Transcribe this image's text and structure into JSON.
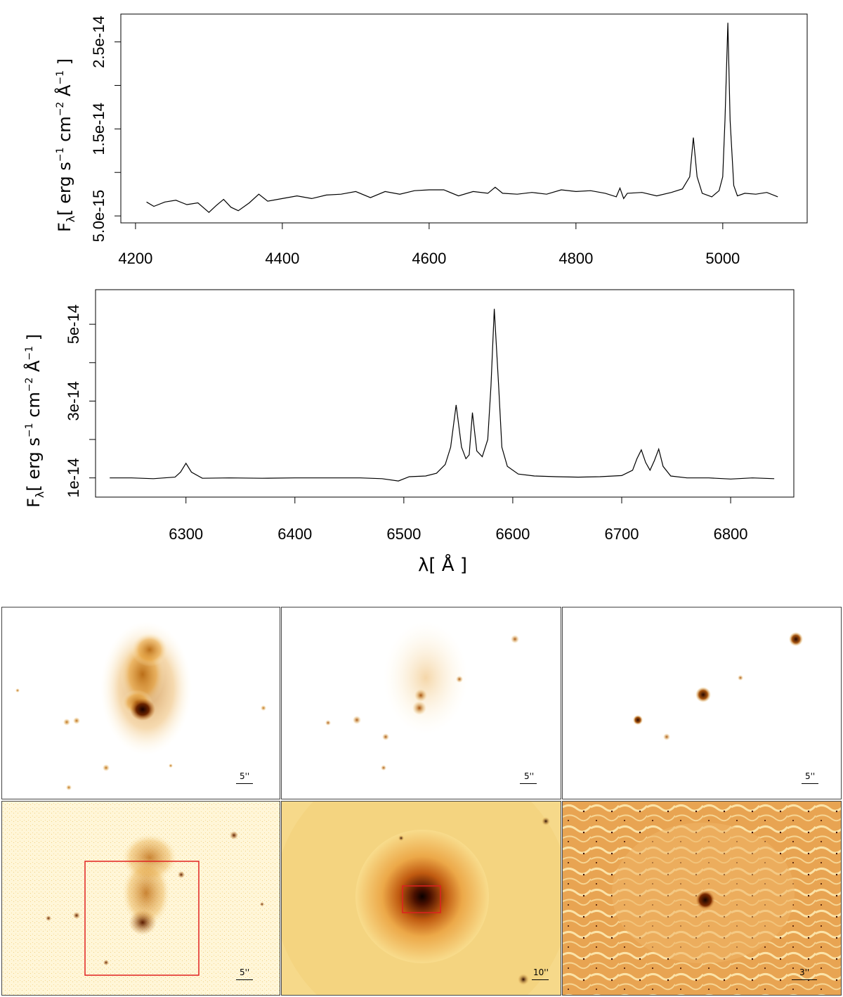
{
  "chart_data": [
    {
      "type": "line",
      "ylabel": "F_λ [ erg s^-1 cm^-2 Å^-1 ]",
      "ylabel_parts": {
        "f": "F",
        "lambda": "λ",
        "open": "[ erg s",
        "m1": "−1",
        "cm": " cm",
        "m2": "−2",
        "A": " Å",
        "m1b": "−1",
        "close": " ]"
      },
      "xlabel": "",
      "xlim": [
        4180,
        5115
      ],
      "ylim": [
        4.2e-15,
        2.82e-14
      ],
      "xticks": [
        4200,
        4400,
        4600,
        4800,
        5000
      ],
      "xtick_labels": [
        "4200",
        "4400",
        "4600",
        "4800",
        "5000"
      ],
      "yticks": [
        5e-15,
        1e-14,
        1.5e-14,
        2e-14,
        2.5e-14
      ],
      "ytick_labels": [
        "5.0e-15",
        "",
        "1.5e-14",
        "",
        "2.5e-14"
      ],
      "series": [
        {
          "x": [
            4215,
            4225,
            4240,
            4255,
            4270,
            4285,
            4300,
            4310,
            4320,
            4330,
            4340,
            4355,
            4368,
            4380,
            4400,
            4420,
            4440,
            4460,
            4480,
            4500,
            4520,
            4540,
            4560,
            4580,
            4600,
            4620,
            4640,
            4660,
            4680,
            4690,
            4700,
            4720,
            4740,
            4760,
            4780,
            4800,
            4820,
            4840,
            4855,
            4860,
            4865,
            4870,
            4890,
            4910,
            4930,
            4945,
            4955,
            4960,
            4965,
            4972,
            4985,
            4995,
            5000,
            5003,
            5007,
            5010,
            5015,
            5020,
            5030,
            5045,
            5060,
            5075
          ],
          "y": [
            6.6e-15,
            6.1e-15,
            6.6e-15,
            6.8e-15,
            6.3e-15,
            6.5e-15,
            5.4e-15,
            6.2e-15,
            6.9e-15,
            6e-15,
            5.6e-15,
            6.5e-15,
            7.5e-15,
            6.7e-15,
            7e-15,
            7.3e-15,
            7e-15,
            7.4e-15,
            7.5e-15,
            7.8e-15,
            7.1e-15,
            7.8e-15,
            7.5e-15,
            7.9e-15,
            8e-15,
            8e-15,
            7.3e-15,
            7.8e-15,
            7.6e-15,
            8.3e-15,
            7.6e-15,
            7.5e-15,
            7.7e-15,
            7.5e-15,
            8e-15,
            7.8e-15,
            7.9e-15,
            7.6e-15,
            7.2e-15,
            8.2e-15,
            7e-15,
            7.6e-15,
            7.7e-15,
            7.3e-15,
            7.7e-15,
            8.1e-15,
            9.5e-15,
            1.4e-14,
            9.5e-15,
            7.6e-15,
            7.2e-15,
            7.9e-15,
            9.5e-15,
            1.6e-14,
            2.72e-14,
            1.6e-14,
            8.5e-15,
            7.3e-15,
            7.6e-15,
            7.5e-15,
            7.7e-15,
            7.2e-15
          ]
        }
      ]
    },
    {
      "type": "line",
      "ylabel": "F_λ [ erg s^-1 cm^-2 Å^-1 ]",
      "ylabel_parts": {
        "f": "F",
        "lambda": "λ",
        "open": "[ erg s",
        "m1": "−1",
        "cm": " cm",
        "m2": "−2",
        "A": " Å",
        "m1b": "−1",
        "close": " ]"
      },
      "xlabel": "λ [ Å ]",
      "xlabel_parts": {
        "lambda": "λ",
        "open": "[ ",
        "A": "Å",
        "close": " ]"
      },
      "xlim": [
        6217,
        6858
      ],
      "ylim": [
        5e-15,
        5.9e-14
      ],
      "xticks": [
        6300,
        6400,
        6500,
        6600,
        6700,
        6800
      ],
      "xtick_labels": [
        "6300",
        "6400",
        "6500",
        "6600",
        "6700",
        "6800"
      ],
      "yticks": [
        1e-14,
        2e-14,
        3e-14,
        4e-14,
        5e-14
      ],
      "ytick_labels": [
        "1e-14",
        "",
        "3e-14",
        "",
        "5e-14"
      ],
      "series": [
        {
          "x": [
            6230,
            6250,
            6270,
            6290,
            6295,
            6300,
            6305,
            6315,
            6340,
            6370,
            6400,
            6430,
            6460,
            6480,
            6495,
            6505,
            6520,
            6530,
            6538,
            6543,
            6548,
            6553,
            6557,
            6560,
            6563,
            6567,
            6572,
            6577,
            6580,
            6583,
            6587,
            6590,
            6595,
            6605,
            6620,
            6640,
            6660,
            6680,
            6700,
            6710,
            6714,
            6718,
            6722,
            6726,
            6730,
            6734,
            6738,
            6745,
            6760,
            6780,
            6800,
            6820,
            6840
          ],
          "y": [
            1e-14,
            1e-14,
            9.8e-15,
            1.02e-14,
            1.15e-14,
            1.38e-14,
            1.15e-14,
            9.9e-15,
            1e-14,
            9.9e-15,
            1e-14,
            1e-14,
            1e-14,
            9.8e-15,
            9.2e-15,
            1.03e-14,
            1.05e-14,
            1.12e-14,
            1.35e-14,
            1.8e-14,
            2.9e-14,
            1.8e-14,
            1.5e-14,
            1.6e-14,
            2.7e-14,
            1.7e-14,
            1.55e-14,
            2e-14,
            3.4e-14,
            5.4e-14,
            3.4e-14,
            1.8e-14,
            1.3e-14,
            1.1e-14,
            1.05e-14,
            1.03e-14,
            1.02e-14,
            1.03e-14,
            1.06e-14,
            1.2e-14,
            1.5e-14,
            1.73e-14,
            1.4e-14,
            1.2e-14,
            1.45e-14,
            1.75e-14,
            1.3e-14,
            1.05e-14,
            1e-14,
            1e-14,
            9.7e-15,
            1e-14,
            9.8e-15
          ]
        }
      ]
    }
  ],
  "image_panels": [
    {
      "scale_label": "5''"
    },
    {
      "scale_label": "5''"
    },
    {
      "scale_label": "5''"
    },
    {
      "scale_label": "5''"
    },
    {
      "scale_label": "10''"
    },
    {
      "scale_label": "3''"
    }
  ],
  "colors": {
    "line": "#000000",
    "image_dark": "#1a0000",
    "image_mid": "#c06a10",
    "image_light": "#fff8e0",
    "box": "#e02020"
  }
}
